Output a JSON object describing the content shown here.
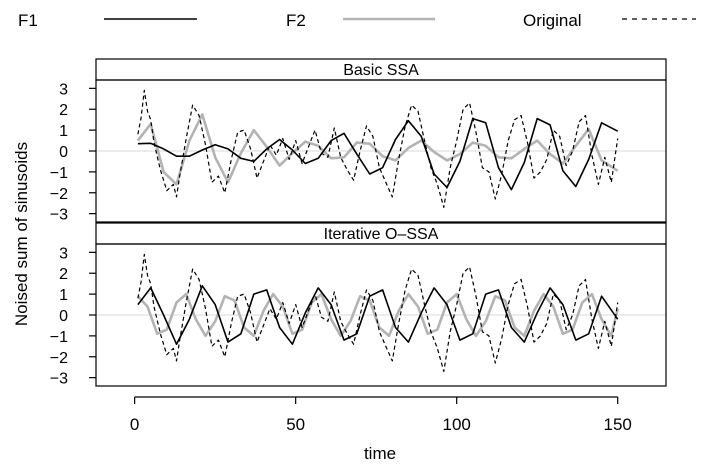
{
  "chart_data": {
    "type": "line",
    "xlabel": "time",
    "ylabel": "Noised sum of sinusoids",
    "xlim": [
      -12,
      165
    ],
    "ylim": [
      -3.4,
      3.4
    ],
    "x_ticks": [
      0,
      50,
      100,
      150
    ],
    "y_ticks": [
      -3,
      -2,
      -1,
      0,
      1,
      2,
      3
    ],
    "grid": false,
    "zero_reference_line": true,
    "legend_position": "top",
    "legend": [
      {
        "name": "F1",
        "color": "#000000",
        "dash": "solid"
      },
      {
        "name": "F2",
        "color": "#b3b3b3",
        "dash": "solid"
      },
      {
        "name": "Original",
        "color": "#000000",
        "dash": "dashed"
      }
    ],
    "panels": [
      {
        "title": "Basic SSA",
        "series": [
          {
            "name": "F1",
            "x": [
              1,
              5,
              9,
              13,
              17,
              21,
              25,
              29,
              33,
              37,
              41,
              45,
              49,
              53,
              57,
              61,
              65,
              69,
              73,
              77,
              81,
              85,
              89,
              93,
              97,
              101,
              105,
              109,
              113,
              117,
              121,
              125,
              129,
              133,
              137,
              141,
              145,
              150
            ],
            "y": [
              0.35,
              0.37,
              0.1,
              -0.25,
              -0.25,
              0.05,
              0.3,
              0.1,
              -0.35,
              -0.5,
              0.1,
              0.55,
              0.05,
              -0.6,
              -0.35,
              0.5,
              0.85,
              -0.15,
              -1.1,
              -0.8,
              0.55,
              1.45,
              0.7,
              -1.1,
              -1.75,
              -0.5,
              1.55,
              1.35,
              -0.8,
              -1.85,
              -0.55,
              1.55,
              1.25,
              -0.95,
              -1.7,
              -0.4,
              1.35,
              0.95
            ]
          },
          {
            "name": "F2",
            "x": [
              1,
              5,
              9,
              13,
              17,
              21,
              25,
              29,
              33,
              37,
              41,
              45,
              49,
              53,
              57,
              61,
              65,
              69,
              73,
              77,
              81,
              85,
              89,
              93,
              97,
              101,
              105,
              109,
              113,
              117,
              121,
              125,
              129,
              133,
              137,
              141,
              145,
              150
            ],
            "y": [
              0.5,
              1.3,
              -1.0,
              -1.6,
              0.5,
              1.75,
              -0.3,
              -1.5,
              -0.1,
              1.0,
              0.2,
              -0.7,
              -0.1,
              0.45,
              0.25,
              -0.35,
              -0.3,
              0.4,
              0.35,
              -0.25,
              -0.45,
              0.15,
              0.5,
              -0.05,
              -0.45,
              -0.15,
              0.4,
              0.25,
              -0.3,
              -0.35,
              0.1,
              0.5,
              -0.15,
              -0.6,
              0.25,
              1.05,
              -0.45,
              -0.95
            ]
          },
          {
            "name": "Original",
            "x": [
              1,
              2,
              3,
              4,
              5,
              6,
              8,
              10,
              12,
              13,
              14,
              16,
              18,
              20,
              22,
              24,
              26,
              28,
              30,
              32,
              34,
              36,
              38,
              40,
              42,
              44,
              46,
              48,
              50,
              52,
              54,
              56,
              58,
              60,
              62,
              64,
              66,
              68,
              70,
              72,
              74,
              76,
              78,
              80,
              82,
              84,
              86,
              88,
              90,
              92,
              94,
              96,
              98,
              100,
              102,
              104,
              106,
              108,
              110,
              112,
              114,
              116,
              118,
              120,
              122,
              124,
              126,
              128,
              130,
              132,
              134,
              136,
              138,
              140,
              142,
              144,
              146,
              148,
              150
            ],
            "y": [
              0.8,
              1.6,
              2.9,
              1.9,
              1.5,
              0.4,
              -0.9,
              -1.9,
              -1.6,
              -2.2,
              -1.2,
              0.6,
              2.2,
              1.7,
              0.3,
              -1.5,
              -1.2,
              -2.0,
              -0.4,
              0.9,
              1.0,
              0.1,
              -1.3,
              -0.5,
              0.3,
              -0.2,
              0.6,
              -0.4,
              0.5,
              -0.6,
              0.2,
              1.0,
              -0.1,
              -0.3,
              1.1,
              -0.3,
              -0.9,
              -1.4,
              0.0,
              1.2,
              0.7,
              -0.8,
              -1.5,
              -2.2,
              -0.4,
              1.2,
              2.2,
              1.9,
              0.5,
              -0.8,
              -1.6,
              -2.7,
              -0.8,
              0.5,
              2.0,
              2.3,
              0.9,
              -0.8,
              -1.0,
              -2.3,
              -1.1,
              0.5,
              1.5,
              1.7,
              0.4,
              -1.3,
              -1.0,
              -0.4,
              1.0,
              0.7,
              -0.7,
              0.0,
              1.4,
              1.7,
              -0.2,
              -1.6,
              -0.3,
              -1.5,
              0.6
            ]
          }
        ]
      },
      {
        "title": "Iterative O–SSA",
        "series": [
          {
            "name": "F1",
            "x": [
              1,
              5,
              9,
              13,
              17,
              21,
              25,
              29,
              33,
              37,
              41,
              45,
              49,
              53,
              57,
              61,
              65,
              69,
              73,
              77,
              81,
              85,
              89,
              93,
              97,
              101,
              105,
              109,
              113,
              117,
              121,
              125,
              129,
              133,
              137,
              141,
              145,
              150
            ],
            "y": [
              0.5,
              1.3,
              0.0,
              -1.4,
              -0.2,
              1.4,
              0.5,
              -1.3,
              -0.9,
              1.0,
              1.2,
              -0.6,
              -1.4,
              0.1,
              1.3,
              0.5,
              -1.2,
              -0.9,
              0.9,
              1.2,
              -0.6,
              -1.3,
              0.1,
              1.3,
              0.5,
              -1.2,
              -0.9,
              1.0,
              1.2,
              -0.6,
              -1.3,
              0.1,
              1.3,
              0.5,
              -1.2,
              -0.9,
              0.9,
              -0.2
            ]
          },
          {
            "name": "F2",
            "x": [
              1,
              4,
              7,
              10,
              13,
              16,
              19,
              22,
              25,
              28,
              31,
              34,
              37,
              40,
              43,
              46,
              49,
              52,
              55,
              58,
              61,
              64,
              67,
              70,
              73,
              76,
              79,
              82,
              85,
              88,
              91,
              94,
              97,
              100,
              103,
              106,
              109,
              112,
              115,
              118,
              121,
              124,
              127,
              130,
              133,
              136,
              139,
              142,
              145,
              148,
              150
            ],
            "y": [
              0.9,
              0.4,
              -0.9,
              -0.7,
              0.6,
              1.0,
              -0.2,
              -1.0,
              -0.3,
              0.9,
              0.7,
              -0.6,
              -1.0,
              0.2,
              1.0,
              0.4,
              -0.9,
              -0.7,
              0.6,
              1.0,
              -0.2,
              -1.0,
              -0.3,
              0.9,
              0.7,
              -0.6,
              -1.0,
              0.2,
              1.0,
              0.4,
              -0.9,
              -0.7,
              0.6,
              1.0,
              -0.2,
              -1.0,
              -0.3,
              0.9,
              0.7,
              -0.6,
              -1.0,
              0.2,
              1.0,
              0.4,
              -0.9,
              -0.7,
              0.6,
              1.0,
              -0.2,
              -1.0,
              0.3
            ]
          },
          {
            "name": "Original",
            "x": [
              1,
              2,
              3,
              4,
              5,
              6,
              8,
              10,
              12,
              13,
              14,
              16,
              18,
              20,
              22,
              24,
              26,
              28,
              30,
              32,
              34,
              36,
              38,
              40,
              42,
              44,
              46,
              48,
              50,
              52,
              54,
              56,
              58,
              60,
              62,
              64,
              66,
              68,
              70,
              72,
              74,
              76,
              78,
              80,
              82,
              84,
              86,
              88,
              90,
              92,
              94,
              96,
              98,
              100,
              102,
              104,
              106,
              108,
              110,
              112,
              114,
              116,
              118,
              120,
              122,
              124,
              126,
              128,
              130,
              132,
              134,
              136,
              138,
              140,
              142,
              144,
              146,
              148,
              150
            ],
            "y": [
              0.8,
              1.6,
              2.9,
              1.9,
              1.5,
              0.4,
              -0.9,
              -1.9,
              -1.6,
              -2.2,
              -1.2,
              0.6,
              2.2,
              1.7,
              0.3,
              -1.5,
              -1.2,
              -2.0,
              -0.4,
              0.9,
              1.0,
              0.1,
              -1.3,
              -0.5,
              0.3,
              -0.2,
              0.6,
              -0.4,
              0.5,
              -0.6,
              0.2,
              1.0,
              -0.1,
              -0.3,
              1.1,
              -0.3,
              -0.9,
              -1.4,
              0.0,
              1.2,
              0.7,
              -0.8,
              -1.5,
              -2.2,
              -0.4,
              1.2,
              2.2,
              1.9,
              0.5,
              -0.8,
              -1.6,
              -2.7,
              -0.8,
              0.5,
              2.0,
              2.3,
              0.9,
              -0.8,
              -1.0,
              -2.3,
              -1.1,
              0.5,
              1.5,
              1.7,
              0.4,
              -1.3,
              -1.0,
              -0.4,
              1.0,
              0.7,
              -0.7,
              0.0,
              1.4,
              1.7,
              -0.2,
              -1.6,
              -0.3,
              -1.5,
              0.6
            ]
          }
        ]
      }
    ]
  }
}
